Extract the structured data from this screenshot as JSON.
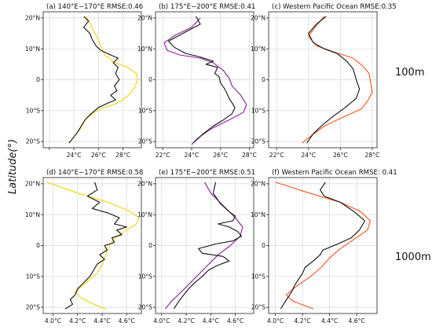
{
  "figure": {
    "ylabel": "Latitude(°)",
    "row_labels": [
      "100m",
      "1000m"
    ]
  },
  "chart_data": [
    {
      "type": "line",
      "panel": "a",
      "title": "(a) 140°E−170°E RMSE:0.46",
      "xlim": [
        21.5,
        29.5
      ],
      "ylim": [
        -22,
        22
      ],
      "xticks": [
        22,
        24,
        26,
        28
      ],
      "xtick_labels": [
        "",
        "24°C",
        "26°C",
        "28°C"
      ],
      "yticks": [
        20,
        10,
        0,
        -10,
        -20
      ],
      "ytick_labels": [
        "20°N",
        "10°N",
        "0",
        "10°S",
        "20°S"
      ],
      "series": [
        {
          "color": "#f2d20a",
          "points": [
            [
              25.0,
              20.5
            ],
            [
              25.6,
              16
            ],
            [
              26.1,
              12
            ],
            [
              26.5,
              8
            ],
            [
              27.4,
              5.5
            ],
            [
              28.4,
              4
            ],
            [
              29.1,
              2
            ],
            [
              29.2,
              0
            ],
            [
              29.0,
              -2
            ],
            [
              28.6,
              -4.5
            ],
            [
              28.0,
              -6.5
            ],
            [
              27.3,
              -8
            ],
            [
              26.4,
              -9
            ],
            [
              25.7,
              -10.5
            ],
            [
              25.0,
              -12.5
            ],
            [
              24.5,
              -16
            ],
            [
              23.7,
              -20
            ]
          ]
        },
        {
          "color": "#111111",
          "points": [
            [
              24.8,
              20.5
            ],
            [
              25.2,
              19
            ],
            [
              24.8,
              17
            ],
            [
              25.3,
              15
            ],
            [
              25.5,
              13
            ],
            [
              25.8,
              11
            ],
            [
              26.2,
              9.5
            ],
            [
              27.0,
              8
            ],
            [
              27.6,
              7
            ],
            [
              27.2,
              5.5
            ],
            [
              27.6,
              4
            ],
            [
              27.4,
              2
            ],
            [
              27.7,
              0
            ],
            [
              27.3,
              -2
            ],
            [
              27.5,
              -3.5
            ],
            [
              27.0,
              -5
            ],
            [
              27.4,
              -6.5
            ],
            [
              26.8,
              -7.5
            ],
            [
              26.0,
              -9
            ],
            [
              25.4,
              -11
            ],
            [
              24.9,
              -13
            ],
            [
              24.6,
              -15
            ],
            [
              24.3,
              -17
            ],
            [
              23.9,
              -19
            ],
            [
              23.6,
              -20.5
            ]
          ]
        }
      ]
    },
    {
      "type": "line",
      "panel": "b",
      "title": "(b) 175°E−200°E RMSE:0.41",
      "xlim": [
        21.5,
        28.3
      ],
      "ylim": [
        -22,
        22
      ],
      "xticks": [
        22,
        24,
        26,
        28
      ],
      "xtick_labels": [
        "22°C",
        "24°C",
        "26°C",
        "28°C"
      ],
      "yticks": [
        20,
        10,
        0,
        -10,
        -20
      ],
      "ytick_labels": [
        "20°N",
        "10°N",
        "0",
        "10°S",
        "20°S"
      ],
      "series": [
        {
          "color": "#8a1c9e",
          "points": [
            [
              24.6,
              20
            ],
            [
              24.0,
              17
            ],
            [
              22.9,
              14.5
            ],
            [
              22.1,
              12
            ],
            [
              22.3,
              9.5
            ],
            [
              23.2,
              8
            ],
            [
              24.6,
              7
            ],
            [
              25.5,
              5.5
            ],
            [
              26.2,
              3
            ],
            [
              26.6,
              0.5
            ],
            [
              26.8,
              -2
            ],
            [
              27.4,
              -5
            ],
            [
              27.8,
              -8
            ],
            [
              27.6,
              -10.5
            ],
            [
              26.6,
              -13
            ],
            [
              25.3,
              -16
            ],
            [
              24.4,
              -19
            ],
            [
              24.0,
              -21
            ]
          ]
        },
        {
          "color": "#111111",
          "points": [
            [
              24.3,
              20.5
            ],
            [
              24.6,
              18
            ],
            [
              23.4,
              15
            ],
            [
              22.4,
              12.5
            ],
            [
              22.8,
              10.5
            ],
            [
              23.6,
              8.5
            ],
            [
              24.5,
              7.5
            ],
            [
              25.5,
              6
            ],
            [
              25.0,
              5
            ],
            [
              25.8,
              4
            ],
            [
              25.6,
              2
            ],
            [
              25.9,
              1
            ],
            [
              26.0,
              -1
            ],
            [
              26.3,
              -3
            ],
            [
              26.6,
              -6
            ],
            [
              27.0,
              -9
            ],
            [
              26.8,
              -11
            ],
            [
              26.2,
              -13
            ],
            [
              25.5,
              -15
            ],
            [
              24.8,
              -17.5
            ],
            [
              24.1,
              -20.5
            ]
          ]
        }
      ]
    },
    {
      "type": "line",
      "panel": "c",
      "title": "(c) Western Pacific Ocean RMSE:0.35",
      "xlim": [
        21.5,
        28.3
      ],
      "ylim": [
        -22,
        22
      ],
      "xticks": [
        22,
        24,
        26,
        28
      ],
      "xtick_labels": [
        "22°C",
        "24°C",
        "26°C",
        "28°C"
      ],
      "yticks": [
        20,
        10,
        0,
        -10,
        -20
      ],
      "ytick_labels": [
        "20°N",
        "10°N",
        "0",
        "10°S",
        "20°S"
      ],
      "series": [
        {
          "color": "#f2551e",
          "points": [
            [
              25.0,
              20.5
            ],
            [
              24.4,
              17
            ],
            [
              24.0,
              14
            ],
            [
              24.5,
              11
            ],
            [
              25.6,
              9
            ],
            [
              26.8,
              7
            ],
            [
              27.4,
              4.5
            ],
            [
              27.8,
              2
            ],
            [
              27.9,
              -1
            ],
            [
              28.0,
              -4
            ],
            [
              27.7,
              -7
            ],
            [
              27.3,
              -9.5
            ],
            [
              26.2,
              -12
            ],
            [
              25.0,
              -15
            ],
            [
              24.2,
              -18
            ],
            [
              23.6,
              -20.5
            ]
          ]
        },
        {
          "color": "#111111",
          "points": [
            [
              25.1,
              20.5
            ],
            [
              24.5,
              18
            ],
            [
              24.0,
              15
            ],
            [
              24.3,
              12
            ],
            [
              25.0,
              10
            ],
            [
              25.8,
              8.5
            ],
            [
              26.4,
              6
            ],
            [
              26.8,
              3.5
            ],
            [
              27.0,
              0
            ],
            [
              27.2,
              -3
            ],
            [
              27.0,
              -6
            ],
            [
              26.3,
              -9
            ],
            [
              25.5,
              -12
            ],
            [
              24.8,
              -15
            ],
            [
              24.3,
              -17.5
            ],
            [
              23.9,
              -20.5
            ]
          ]
        }
      ]
    },
    {
      "type": "line",
      "panel": "d",
      "title": "(d) 140°E−170°E RMSE:0.58",
      "xlim": [
        3.92,
        4.72
      ],
      "ylim": [
        -22,
        22
      ],
      "xticks": [
        4.0,
        4.2,
        4.4,
        4.6
      ],
      "xtick_labels": [
        "4.0°C",
        "4.2°C",
        "4.4°C",
        "4.6°C"
      ],
      "yticks": [
        20,
        10,
        0,
        -10,
        -20
      ],
      "ytick_labels": [
        "20°N",
        "10°N",
        "0",
        "10°S",
        "20°S"
      ],
      "series": [
        {
          "color": "#f2d20a",
          "points": [
            [
              3.95,
              20.5
            ],
            [
              4.2,
              17
            ],
            [
              4.45,
              14
            ],
            [
              4.63,
              11
            ],
            [
              4.7,
              9
            ],
            [
              4.68,
              7
            ],
            [
              4.6,
              5
            ],
            [
              4.52,
              3
            ],
            [
              4.46,
              0
            ],
            [
              4.43,
              -3
            ],
            [
              4.4,
              -6
            ],
            [
              4.36,
              -9
            ],
            [
              4.27,
              -12
            ],
            [
              4.18,
              -15
            ],
            [
              4.23,
              -17
            ],
            [
              4.33,
              -19
            ],
            [
              4.43,
              -20.5
            ]
          ]
        },
        {
          "color": "#111111",
          "points": [
            [
              4.34,
              20.5
            ],
            [
              4.36,
              18
            ],
            [
              4.28,
              16
            ],
            [
              4.38,
              14
            ],
            [
              4.32,
              12
            ],
            [
              4.45,
              10.5
            ],
            [
              4.54,
              9
            ],
            [
              4.5,
              7
            ],
            [
              4.6,
              6
            ],
            [
              4.52,
              5
            ],
            [
              4.56,
              3.5
            ],
            [
              4.48,
              2.5
            ],
            [
              4.5,
              1
            ],
            [
              4.42,
              0
            ],
            [
              4.44,
              -1.5
            ],
            [
              4.38,
              -3
            ],
            [
              4.42,
              -4.5
            ],
            [
              4.36,
              -6
            ],
            [
              4.33,
              -8
            ],
            [
              4.3,
              -10
            ],
            [
              4.25,
              -12
            ],
            [
              4.2,
              -14
            ],
            [
              4.18,
              -16
            ],
            [
              4.14,
              -17.5
            ],
            [
              4.16,
              -19
            ],
            [
              4.1,
              -20.5
            ]
          ]
        }
      ]
    },
    {
      "type": "line",
      "panel": "e",
      "title": "(e) 175°E−200°E RMSE:0.51",
      "xlim": [
        3.95,
        4.75
      ],
      "ylim": [
        -22,
        22
      ],
      "xticks": [
        4.0,
        4.2,
        4.4,
        4.6
      ],
      "xtick_labels": [
        "4.0°C",
        "4.2°C",
        "4.4°C",
        "4.6°C"
      ],
      "yticks": [
        20,
        10,
        0,
        -10,
        -20
      ],
      "ytick_labels": [
        "20°N",
        "10°N",
        "0",
        "10°S",
        "20°S"
      ],
      "series": [
        {
          "color": "#8a1c9e",
          "points": [
            [
              4.35,
              20.5
            ],
            [
              4.4,
              17
            ],
            [
              4.5,
              13
            ],
            [
              4.6,
              9
            ],
            [
              4.66,
              6
            ],
            [
              4.64,
              3
            ],
            [
              4.56,
              0
            ],
            [
              4.46,
              -3
            ],
            [
              4.36,
              -7
            ],
            [
              4.26,
              -11
            ],
            [
              4.16,
              -15
            ],
            [
              4.08,
              -18
            ],
            [
              4.03,
              -20.5
            ]
          ]
        },
        {
          "color": "#111111",
          "points": [
            [
              4.44,
              20.5
            ],
            [
              4.42,
              17
            ],
            [
              4.48,
              13.5
            ],
            [
              4.55,
              11
            ],
            [
              4.6,
              9.5
            ],
            [
              4.58,
              8
            ],
            [
              4.46,
              7
            ],
            [
              4.55,
              6
            ],
            [
              4.62,
              4.5
            ],
            [
              4.65,
              3
            ],
            [
              4.58,
              1.5
            ],
            [
              4.44,
              0.5
            ],
            [
              4.3,
              -1
            ],
            [
              4.33,
              -2.5
            ],
            [
              4.5,
              -3.5
            ],
            [
              4.55,
              -5
            ],
            [
              4.45,
              -6.5
            ],
            [
              4.38,
              -8
            ],
            [
              4.33,
              -10
            ],
            [
              4.27,
              -12
            ],
            [
              4.22,
              -14
            ],
            [
              4.18,
              -16
            ],
            [
              4.14,
              -18
            ],
            [
              4.1,
              -20.5
            ]
          ]
        }
      ]
    },
    {
      "type": "line",
      "panel": "f",
      "title": "(f) Western Pacific Ocean RMSE: 0.41",
      "xlim": [
        3.95,
        4.75
      ],
      "ylim": [
        -22,
        22
      ],
      "xticks": [
        4.0,
        4.2,
        4.4,
        4.6
      ],
      "xtick_labels": [
        "4.0°C",
        "4.2°C",
        "4.4°C",
        "4.6°C"
      ],
      "yticks": [
        20,
        10,
        0,
        -10,
        -20
      ],
      "ytick_labels": [
        "20°N",
        "10°N",
        "0",
        "10°S",
        "20°S"
      ],
      "series": [
        {
          "color": "#f2551e",
          "points": [
            [
              4.0,
              20.5
            ],
            [
              4.25,
              17
            ],
            [
              4.48,
              14
            ],
            [
              4.63,
              11
            ],
            [
              4.7,
              8
            ],
            [
              4.68,
              5
            ],
            [
              4.58,
              2
            ],
            [
              4.48,
              -1
            ],
            [
              4.4,
              -4
            ],
            [
              4.34,
              -7
            ],
            [
              4.26,
              -10
            ],
            [
              4.16,
              -13
            ],
            [
              4.08,
              -16
            ],
            [
              4.13,
              -18
            ],
            [
              4.28,
              -20.5
            ]
          ]
        },
        {
          "color": "#111111",
          "points": [
            [
              4.37,
              20.5
            ],
            [
              4.33,
              18
            ],
            [
              4.36,
              16
            ],
            [
              4.48,
              14
            ],
            [
              4.58,
              11
            ],
            [
              4.66,
              8
            ],
            [
              4.62,
              5
            ],
            [
              4.56,
              2.5
            ],
            [
              4.46,
              0.5
            ],
            [
              4.35,
              -1.5
            ],
            [
              4.33,
              -3
            ],
            [
              4.28,
              -5
            ],
            [
              4.22,
              -7
            ],
            [
              4.2,
              -9
            ],
            [
              4.17,
              -11
            ],
            [
              4.14,
              -13
            ],
            [
              4.12,
              -15
            ],
            [
              4.09,
              -17
            ],
            [
              4.06,
              -19
            ],
            [
              4.04,
              -20.5
            ]
          ]
        }
      ]
    }
  ]
}
